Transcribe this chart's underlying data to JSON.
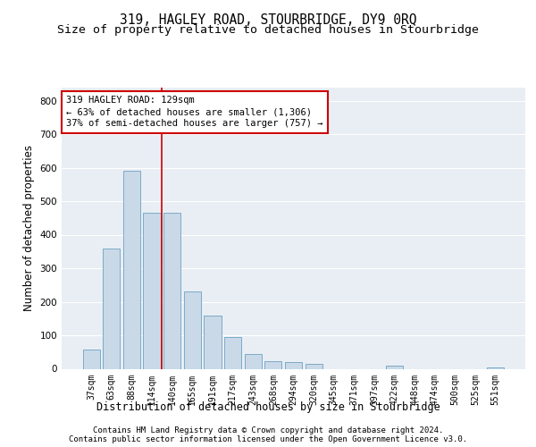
{
  "title": "319, HAGLEY ROAD, STOURBRIDGE, DY9 0RQ",
  "subtitle": "Size of property relative to detached houses in Stourbridge",
  "xlabel": "Distribution of detached houses by size in Stourbridge",
  "ylabel": "Number of detached properties",
  "categories": [
    "37sqm",
    "63sqm",
    "88sqm",
    "114sqm",
    "140sqm",
    "165sqm",
    "191sqm",
    "217sqm",
    "243sqm",
    "268sqm",
    "294sqm",
    "320sqm",
    "345sqm",
    "371sqm",
    "397sqm",
    "422sqm",
    "448sqm",
    "474sqm",
    "500sqm",
    "525sqm",
    "551sqm"
  ],
  "values": [
    58,
    358,
    590,
    465,
    465,
    230,
    160,
    95,
    45,
    22,
    20,
    15,
    0,
    0,
    0,
    10,
    0,
    0,
    0,
    0,
    5
  ],
  "bar_color": "#c9d9e8",
  "bar_edge_color": "#7eaac8",
  "annotation_text": "319 HAGLEY ROAD: 129sqm\n← 63% of detached houses are smaller (1,306)\n37% of semi-detached houses are larger (757) →",
  "annotation_box_color": "#ffffff",
  "annotation_box_edge_color": "#cc0000",
  "vline_x": 3.5,
  "ylim": [
    0,
    840
  ],
  "yticks": [
    0,
    100,
    200,
    300,
    400,
    500,
    600,
    700,
    800
  ],
  "background_color": "#e8eef4",
  "grid_color": "#ffffff",
  "footer_line1": "Contains HM Land Registry data © Crown copyright and database right 2024.",
  "footer_line2": "Contains public sector information licensed under the Open Government Licence v3.0.",
  "title_fontsize": 10.5,
  "subtitle_fontsize": 9.5,
  "tick_fontsize": 7,
  "ylabel_fontsize": 8.5,
  "xlabel_fontsize": 8.5,
  "annotation_fontsize": 7.5,
  "footer_fontsize": 6.5
}
